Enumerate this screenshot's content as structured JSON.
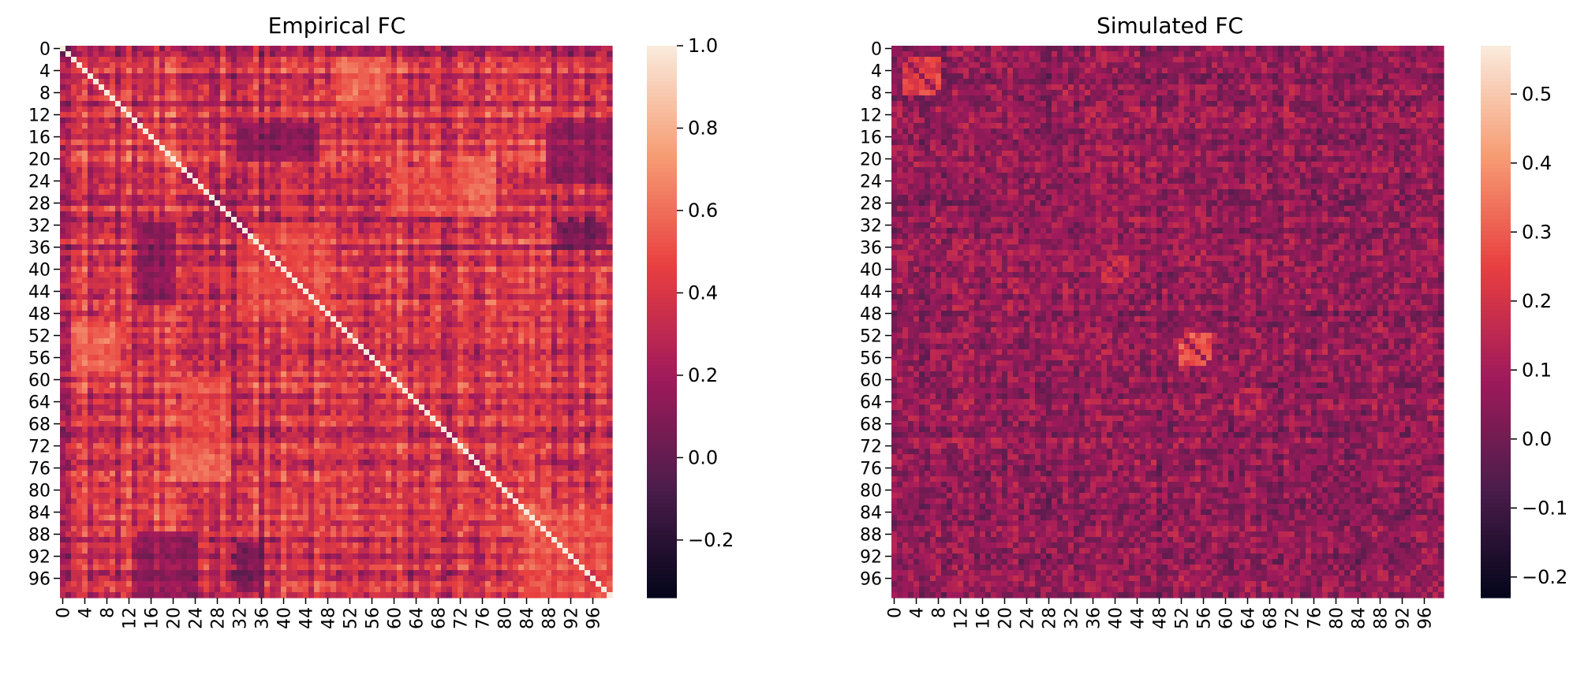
{
  "chart_data": [
    {
      "type": "heatmap",
      "title": "Empirical FC",
      "matrix_size": 100,
      "xlabel": "",
      "ylabel": "",
      "x_ticks": [
        "0",
        "4",
        "8",
        "12",
        "16",
        "20",
        "24",
        "28",
        "32",
        "36",
        "40",
        "44",
        "48",
        "52",
        "56",
        "60",
        "64",
        "68",
        "72",
        "76",
        "80",
        "84",
        "88",
        "92",
        "96"
      ],
      "y_ticks": [
        "0",
        "4",
        "8",
        "12",
        "16",
        "20",
        "24",
        "28",
        "32",
        "36",
        "40",
        "44",
        "48",
        "52",
        "56",
        "60",
        "64",
        "68",
        "72",
        "76",
        "80",
        "84",
        "88",
        "92",
        "96"
      ],
      "diagonal_value": 1.0,
      "value_range": [
        -0.34,
        1.0
      ],
      "typical_offdiag_mean": 0.35,
      "modules": [
        {
          "rows": [
            2,
            10
          ],
          "cols": [
            50,
            58
          ],
          "value": 0.7
        },
        {
          "rows": [
            22,
            30
          ],
          "cols": [
            60,
            78
          ],
          "value": 0.6
        },
        {
          "rows": [
            74,
            78
          ],
          "cols": [
            20,
            30
          ],
          "value": 0.65
        },
        {
          "rows": [
            36,
            48
          ],
          "cols": [
            32,
            46
          ],
          "value": 0.55
        },
        {
          "rows": [
            84,
            99
          ],
          "cols": [
            84,
            99
          ],
          "value": 0.6
        }
      ],
      "low_bands": [
        {
          "rows": [
            14,
            20
          ],
          "cols": [
            32,
            46
          ],
          "value": -0.05
        },
        {
          "rows": [
            88,
            99
          ],
          "cols": [
            14,
            24
          ],
          "value": 0.0
        },
        {
          "rows": [
            32,
            36
          ],
          "cols": [
            90,
            98
          ],
          "value": -0.1
        }
      ],
      "colorbar": {
        "min": -0.34,
        "max": 1.0,
        "ticks": [
          -0.2,
          0.0,
          0.2,
          0.4,
          0.6,
          0.8,
          1.0
        ],
        "tick_labels": [
          "−0.2",
          "0.0",
          "0.2",
          "0.4",
          "0.6",
          "0.8",
          "1.0"
        ]
      }
    },
    {
      "type": "heatmap",
      "title": "Simulated FC",
      "matrix_size": 100,
      "xlabel": "",
      "ylabel": "",
      "x_ticks": [
        "0",
        "4",
        "8",
        "12",
        "16",
        "20",
        "24",
        "28",
        "32",
        "36",
        "40",
        "44",
        "48",
        "52",
        "56",
        "60",
        "64",
        "68",
        "72",
        "76",
        "80",
        "84",
        "88",
        "92",
        "96"
      ],
      "y_ticks": [
        "0",
        "4",
        "8",
        "12",
        "16",
        "20",
        "24",
        "28",
        "32",
        "36",
        "40",
        "44",
        "48",
        "52",
        "56",
        "60",
        "64",
        "68",
        "72",
        "76",
        "80",
        "84",
        "88",
        "92",
        "96"
      ],
      "diagonal_value": 0.05,
      "value_range": [
        -0.23,
        0.57
      ],
      "typical_offdiag_mean": 0.06,
      "modules": [
        {
          "rows": [
            2,
            8
          ],
          "cols": [
            2,
            8
          ],
          "value": 0.35
        },
        {
          "rows": [
            52,
            57
          ],
          "cols": [
            52,
            57
          ],
          "value": 0.4
        },
        {
          "rows": [
            38,
            42
          ],
          "cols": [
            38,
            42
          ],
          "value": 0.25
        },
        {
          "rows": [
            62,
            66
          ],
          "cols": [
            62,
            66
          ],
          "value": 0.22
        }
      ],
      "low_bands": [],
      "colorbar": {
        "min": -0.23,
        "max": 0.57,
        "ticks": [
          -0.2,
          -0.1,
          0.0,
          0.1,
          0.2,
          0.3,
          0.4,
          0.5
        ],
        "tick_labels": [
          "−0.2",
          "−0.1",
          "0.0",
          "0.1",
          "0.2",
          "0.3",
          "0.4",
          "0.5"
        ]
      }
    }
  ],
  "colormap": "rocket",
  "colormap_stops": [
    "#03051a",
    "#4c1d4b",
    "#a11a5b",
    "#e83f3f",
    "#f69c73",
    "#faebdd"
  ]
}
